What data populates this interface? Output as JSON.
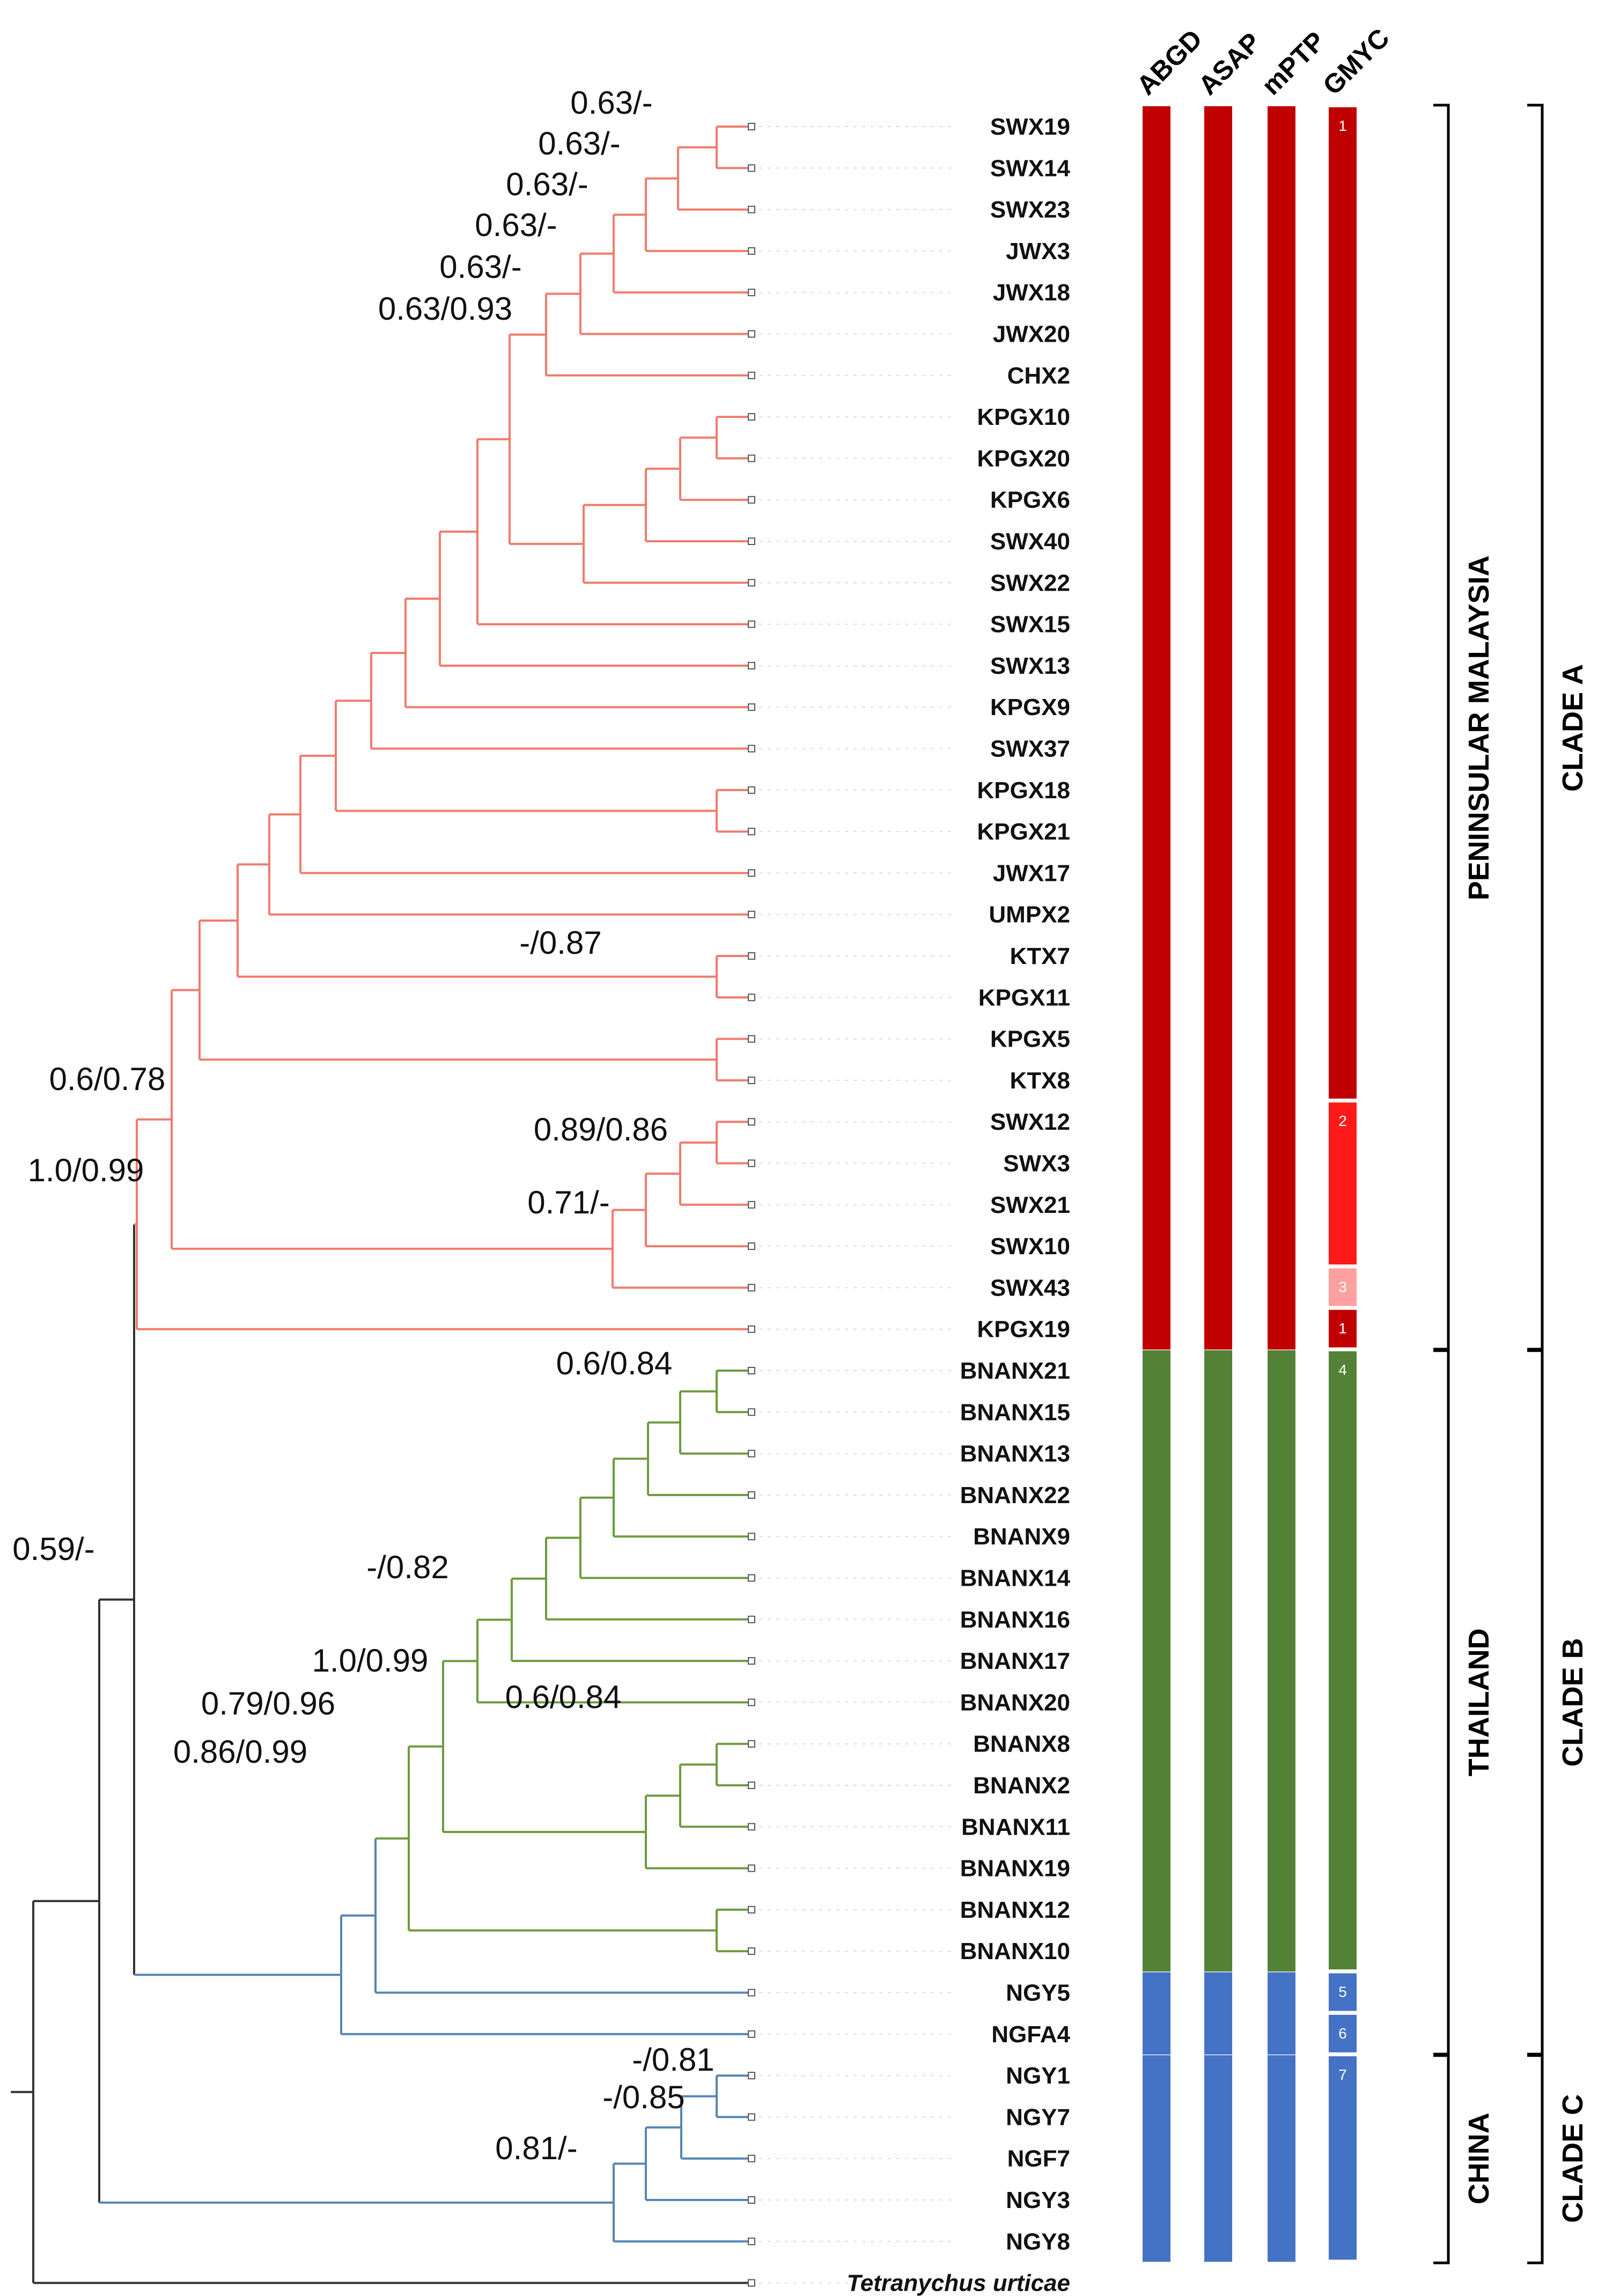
{
  "colors": {
    "cladeA_branch": "#f07b6e",
    "cladeB_branch": "#6d9b3d",
    "cladeC_branch": "#5585b5",
    "root_branch": "#333333",
    "bar_red": "#c00000",
    "bar_green": "#538135",
    "bar_blue": "#4472c4",
    "gmyc_2": "#ff1a1a",
    "gmyc_3": "#ffa0a0"
  },
  "methods": [
    "ABGD",
    "ASAP",
    "mPTP",
    "GMYC"
  ],
  "taxa": [
    "SWX19",
    "SWX14",
    "SWX23",
    "JWX3",
    "JWX18",
    "JWX20",
    "CHX2",
    "KPGX10",
    "KPGX20",
    "KPGX6",
    "SWX40",
    "SWX22",
    "SWX15",
    "SWX13",
    "KPGX9",
    "SWX37",
    "KPGX18",
    "KPGX21",
    "JWX17",
    "UMPX2",
    "KTX7",
    "KPGX11",
    "KPGX5",
    "KTX8",
    "SWX12",
    "SWX3",
    "SWX21",
    "SWX10",
    "SWX43",
    "KPGX19",
    "BNANX21",
    "BNANX15",
    "BNANX13",
    "BNANX22",
    "BNANX9",
    "BNANX14",
    "BNANX16",
    "BNANX17",
    "BNANX20",
    "BNANX8",
    "BNANX2",
    "BNANX11",
    "BNANX19",
    "BNANX12",
    "BNANX10",
    "NGY5",
    "NGFA4",
    "NGY1",
    "NGY7",
    "NGF7",
    "NGY3",
    "NGY8",
    "Tetranychus urticae"
  ],
  "support_labels": [
    "0.63/-",
    "0.63/-",
    "0.63/-",
    "0.63/-",
    "0.63/-",
    "0.63/0.93",
    "-/0.87",
    "0.6/0.78",
    "0.89/0.86",
    "1.0/0.99",
    "0.71/-",
    "0.6/0.84",
    "0.59/-",
    "-/0.82",
    "1.0/0.99",
    "0.6/0.84",
    "0.79/0.96",
    "0.86/0.99",
    "-/0.81",
    "-/0.85",
    "0.81/-"
  ],
  "gmyc_groups": [
    "1",
    "2",
    "3",
    "1",
    "4",
    "5",
    "6",
    "7"
  ],
  "regions": [
    "PENINSULAR MALAYSIA",
    "THAILAND",
    "CHINA"
  ],
  "clades": [
    "CLADE A",
    "CLADE B",
    "CLADE C"
  ]
}
